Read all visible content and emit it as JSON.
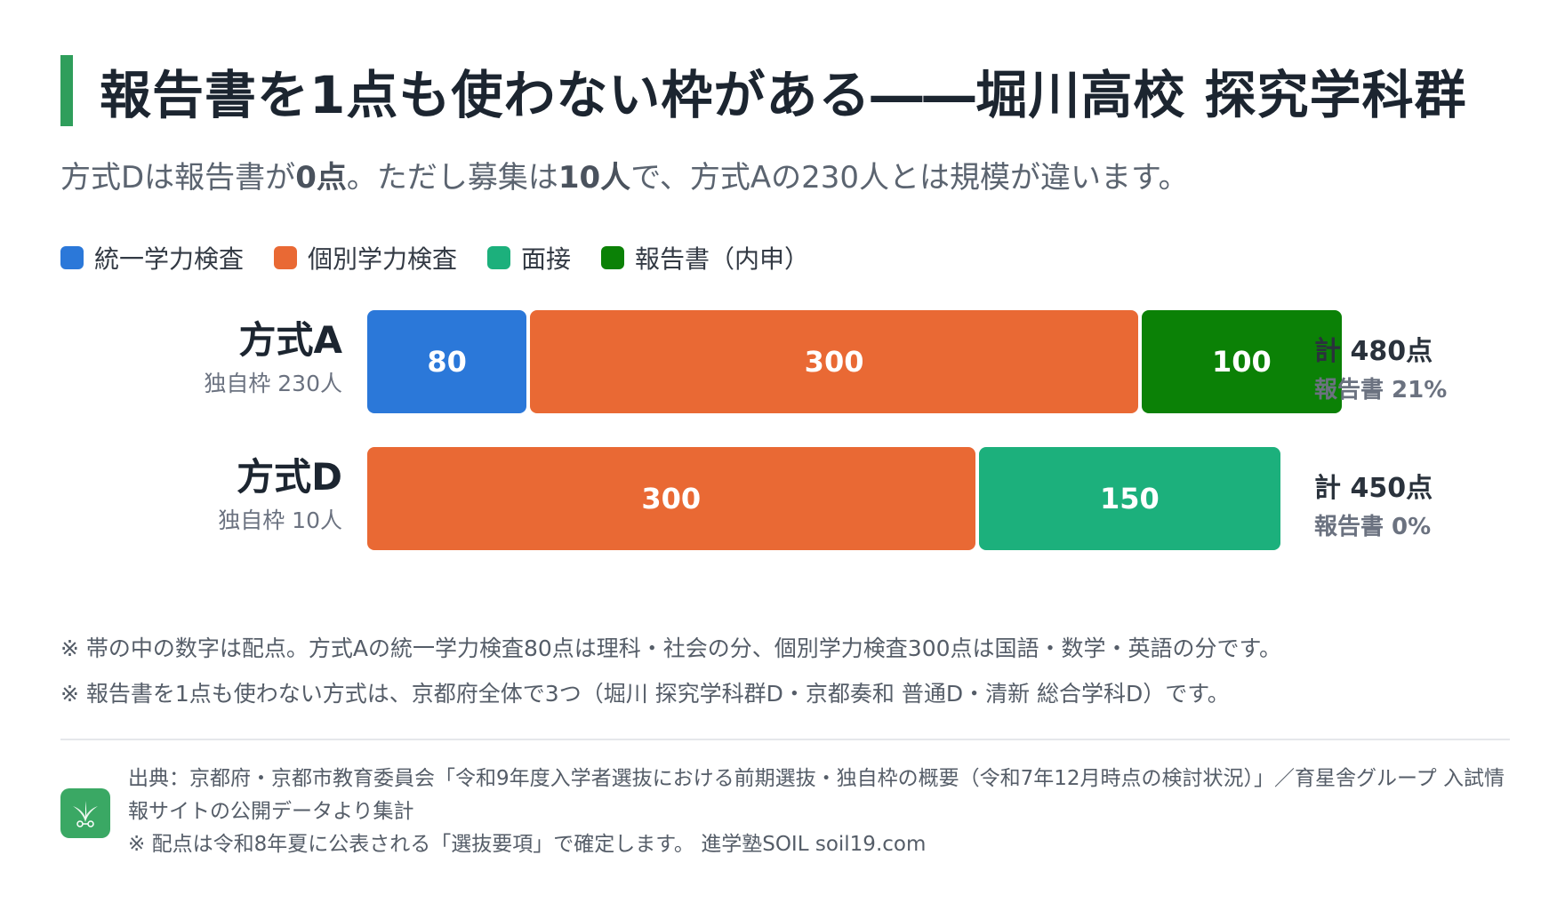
{
  "title": "報告書を1点も使わない枠がある――堀川高校 探究学科群",
  "subtitle": {
    "part1": "方式Dは報告書が",
    "bold1": "0点",
    "part2": "。ただし募集は",
    "bold2": "10人",
    "part3": "で、方式Aの230人とは規模が違います。"
  },
  "legend": [
    {
      "label": "統一学力検査",
      "color": "#2b78d9"
    },
    {
      "label": "個別学力検査",
      "color": "#e96934"
    },
    {
      "label": "面接",
      "color": "#1cb07c"
    },
    {
      "label": "報告書（内申）",
      "color": "#0b8106"
    }
  ],
  "rows": [
    {
      "name": "方式A",
      "sub": "独自枠 230人",
      "total": "計 480点",
      "report": "報告書 21%"
    },
    {
      "name": "方式D",
      "sub": "独自枠 10人",
      "total": "計 450点",
      "report": "報告書 0%"
    }
  ],
  "chart_data": {
    "type": "bar",
    "orientation": "horizontal",
    "stacked": true,
    "categories": [
      "方式A",
      "方式D"
    ],
    "series": [
      {
        "name": "統一学力検査",
        "values": [
          80,
          0
        ]
      },
      {
        "name": "個別学力検査",
        "values": [
          300,
          300
        ]
      },
      {
        "name": "面接",
        "values": [
          0,
          150
        ]
      },
      {
        "name": "報告書（内申）",
        "values": [
          100,
          0
        ]
      }
    ],
    "colors": [
      "#2b78d9",
      "#e96934",
      "#1cb07c",
      "#0b8106"
    ],
    "xlim": [
      0,
      480
    ],
    "grid": false,
    "legend": "top-left"
  },
  "notes": [
    "※ 帯の中の数字は配点。方式Aの統一学力検査80点は理科・社会の分、個別学力検査300点は国語・数学・英語の分です。",
    "※ 報告書を1点も使わない方式は、京都府全体で3つ（堀川 探究学科群D・京都奏和 普通D・清新 総合学科D）です。"
  ],
  "footer": {
    "source_line1": "出典：京都府・京都市教育委員会「令和9年度入学者選抜における前期選抜・独自枠の概要（令和7年12月時点の検討状況）」／育星舎グループ 入試情",
    "source_line2": "報サイトの公開データより集計",
    "note": "※ 配点は令和8年夏に公表される「選抜要項」で確定します。 進学塾SOIL soil19.com",
    "logo_icon": "soil-logo-icon"
  }
}
